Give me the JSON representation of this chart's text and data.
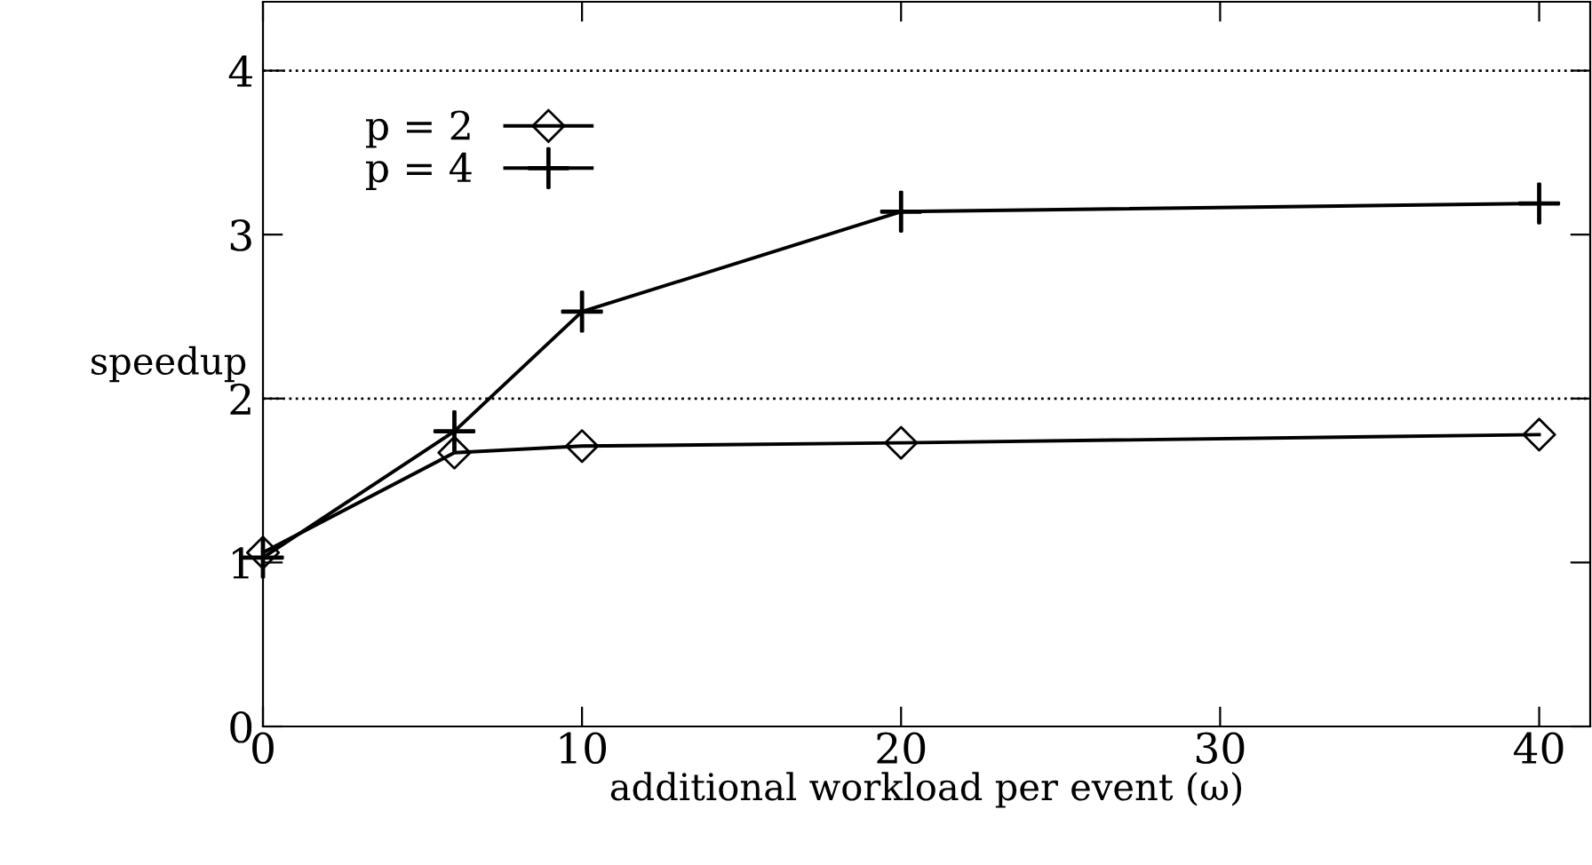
{
  "chart_data": {
    "type": "line",
    "xlabel": "additional workload per event (ω)",
    "ylabel": "speedup",
    "xlim": [
      0,
      41.6
    ],
    "xticks": [
      0,
      10,
      20,
      30,
      40
    ],
    "ylim": [
      0,
      4.42
    ],
    "yticks": [
      0,
      1,
      2,
      3,
      4
    ],
    "legend": "top left",
    "grid": false,
    "line_style": "solid",
    "ref_lines": [
      {
        "axis": "y",
        "value": 2,
        "line_style": "dotted",
        "color": "#000000"
      },
      {
        "axis": "y",
        "value": 4,
        "line_style": "dotted",
        "color": "#000000"
      }
    ],
    "series": [
      {
        "name": "p = 2",
        "color": "#000000",
        "marker": "diamond",
        "x": [
          0,
          6,
          10,
          20,
          40
        ],
        "values": [
          1.06,
          1.67,
          1.71,
          1.73,
          1.78
        ]
      },
      {
        "name": "p = 4",
        "color": "#000000",
        "marker": "cross",
        "x": [
          0,
          6,
          10,
          20,
          40
        ],
        "values": [
          1.03,
          1.8,
          2.53,
          3.14,
          3.19
        ]
      }
    ]
  }
}
